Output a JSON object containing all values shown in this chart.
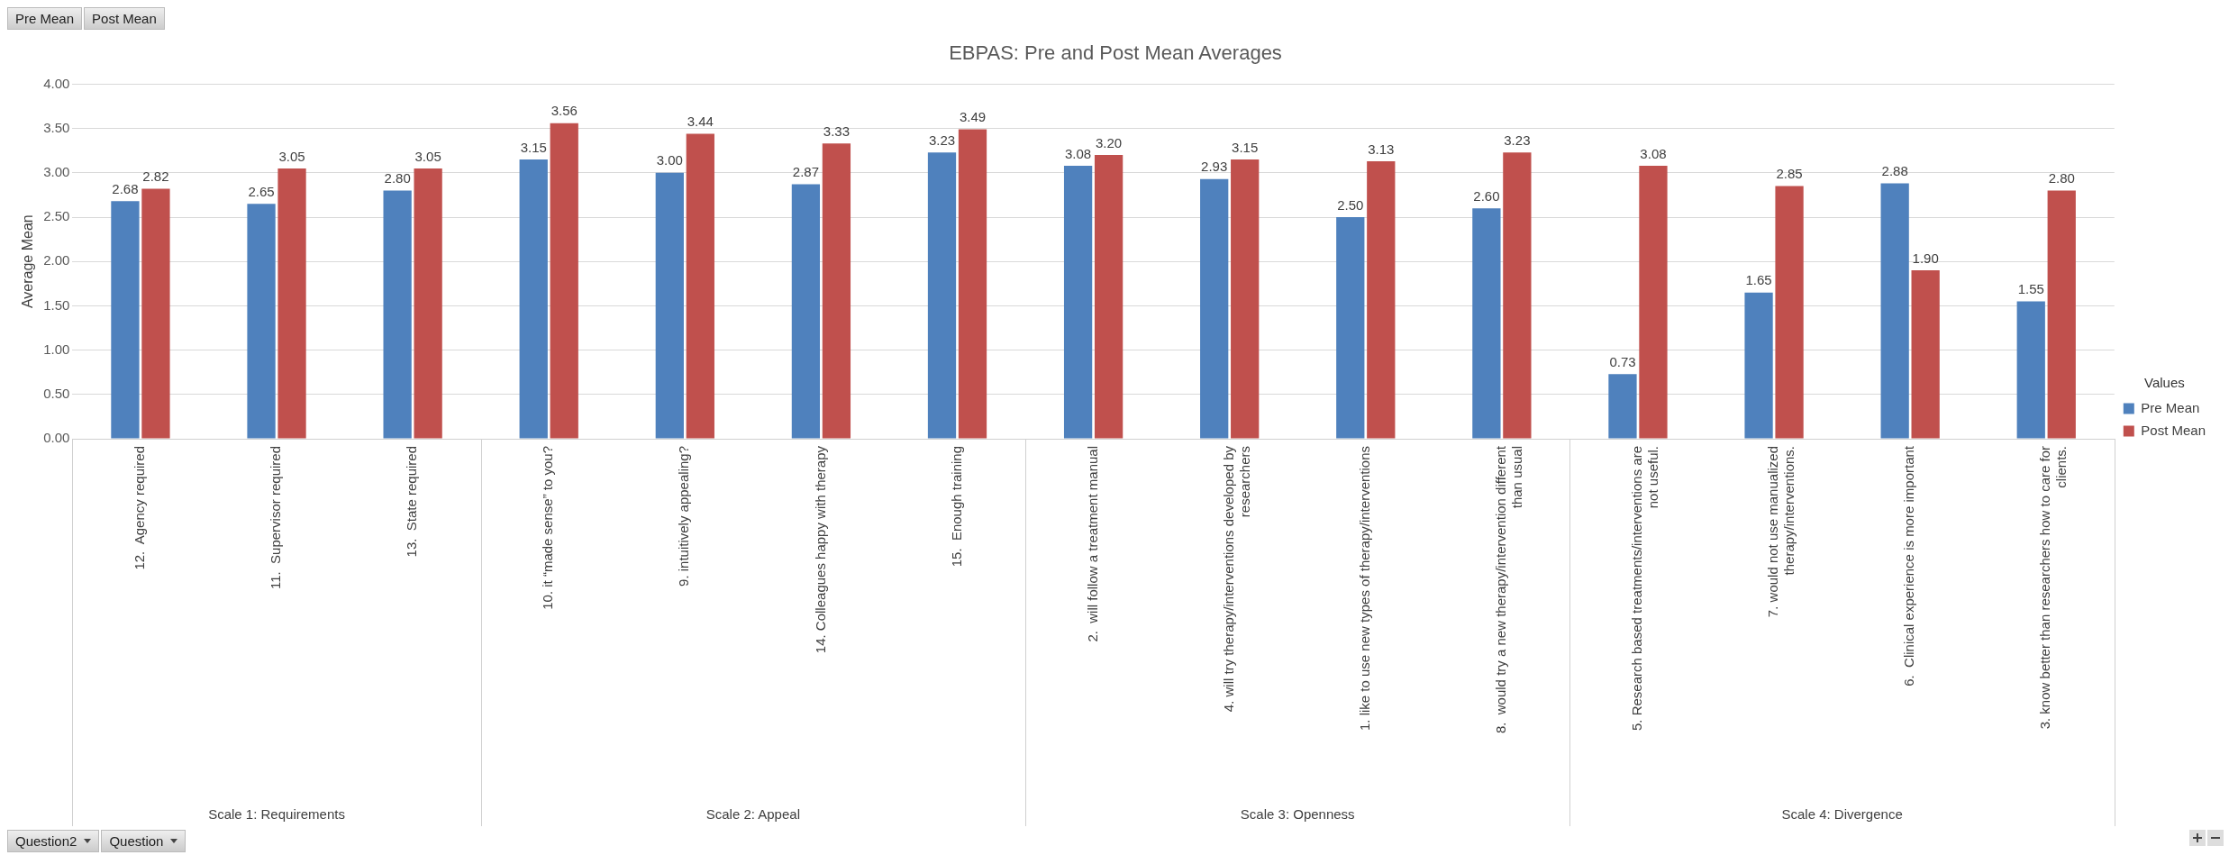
{
  "chart_data": {
    "type": "bar",
    "title": "EBPAS: Pre and Post Mean Averages",
    "ylabel": "Average Mean",
    "legend_title": "Values",
    "legend": "right",
    "categories": [
      "12.  Agency required",
      "11.  Supervisor required",
      "13.  State required",
      "10. it “made sense” to you?",
      "9. intuitively appealing?",
      "14. Colleagues happy with therapy",
      "15.  Enough training",
      "2.  will follow a treatment manual",
      "4. will try therapy/interventions developed by researchers",
      "1. like to use new types of therapy/interventions",
      "8.  would try a new therapy/intervention different than usual",
      "5. Research based treatments/interventions are not useful.",
      "7. would not use manualized therapy/interventions.",
      "6.  Clinical experience is more important",
      "3. know better than researchers how to care for clients."
    ],
    "series": [
      {
        "name": "Pre Mean",
        "color": "#4f81bd",
        "values": [
          2.68,
          2.65,
          2.8,
          3.15,
          3.0,
          2.87,
          3.23,
          3.08,
          2.93,
          2.5,
          2.6,
          0.73,
          1.65,
          2.88,
          1.55
        ],
        "value_labels": [
          "2.68",
          "2.65",
          "2.80",
          "3.15",
          "3.00",
          "2.87",
          "3.23",
          "3.08",
          "2.93",
          "2.50",
          "2.60",
          "0.73",
          "1.65",
          "2.88",
          "1.55"
        ]
      },
      {
        "name": "Post Mean",
        "color": "#c0504d",
        "values": [
          2.82,
          3.05,
          3.05,
          3.56,
          3.44,
          3.33,
          3.49,
          3.2,
          3.15,
          3.13,
          3.23,
          3.08,
          2.85,
          1.9,
          2.8
        ],
        "value_labels": [
          "2.82",
          "3.05",
          "3.05",
          "3.56",
          "3.44",
          "3.33",
          "3.49",
          "3.20",
          "3.15",
          "3.13",
          "3.23",
          "3.08",
          "2.85",
          "1.90",
          "2.80"
        ]
      }
    ],
    "ylim": [
      0,
      4
    ],
    "yticks": [
      {
        "value": 0,
        "label": "0.00"
      },
      {
        "value": 0.5,
        "label": "0.50"
      },
      {
        "value": 1,
        "label": "1.00"
      },
      {
        "value": 1.5,
        "label": "1.50"
      },
      {
        "value": 2,
        "label": "2.00"
      },
      {
        "value": 2.5,
        "label": "2.50"
      },
      {
        "value": 3,
        "label": "3.00"
      },
      {
        "value": 3.5,
        "label": "3.50"
      },
      {
        "value": 4,
        "label": "4.00"
      }
    ],
    "grid": "y",
    "annotations": [
      "Scale 1: Requirements",
      "Scale 2: Appeal",
      "Scale 3: Openness",
      "Scale 4: Divergence",
      "Question2",
      "Question"
    ]
  }
}
